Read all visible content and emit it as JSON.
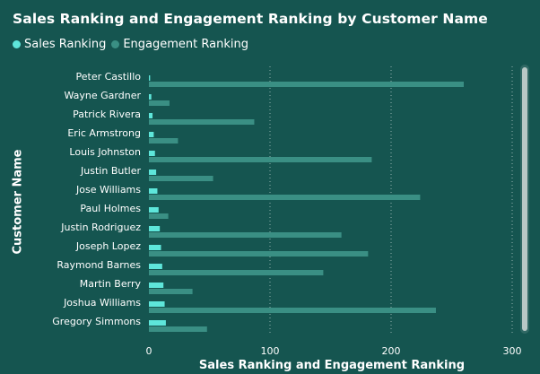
{
  "chart_data": {
    "type": "bar",
    "orientation": "horizontal",
    "title": "Sales Ranking and Engagement Ranking by Customer Name",
    "xlabel": "Sales Ranking and Engagement Ranking",
    "ylabel": "Customer Name",
    "xlim": [
      0,
      300
    ],
    "xticks": [
      0,
      100,
      200,
      300
    ],
    "grid": true,
    "legend_position": "top-left",
    "categories": [
      "Peter Castillo",
      "Wayne Gardner",
      "Patrick Rivera",
      "Eric Armstrong",
      "Louis Johnston",
      "Justin Butler",
      "Jose Williams",
      "Paul Holmes",
      "Justin Rodriguez",
      "Joseph Lopez",
      "Raymond Barnes",
      "Martin Berry",
      "Joshua Williams",
      "Gregory Simmons"
    ],
    "series": [
      {
        "name": "Sales Ranking",
        "color": "#5ee6da",
        "values": [
          1,
          2,
          3,
          4,
          5,
          6,
          7,
          8,
          9,
          10,
          11,
          12,
          13,
          14
        ]
      },
      {
        "name": "Engagement Ranking",
        "color": "#3a8f84",
        "values": [
          260,
          17,
          87,
          24,
          184,
          53,
          224,
          16,
          159,
          181,
          144,
          36,
          237,
          48
        ]
      }
    ]
  }
}
